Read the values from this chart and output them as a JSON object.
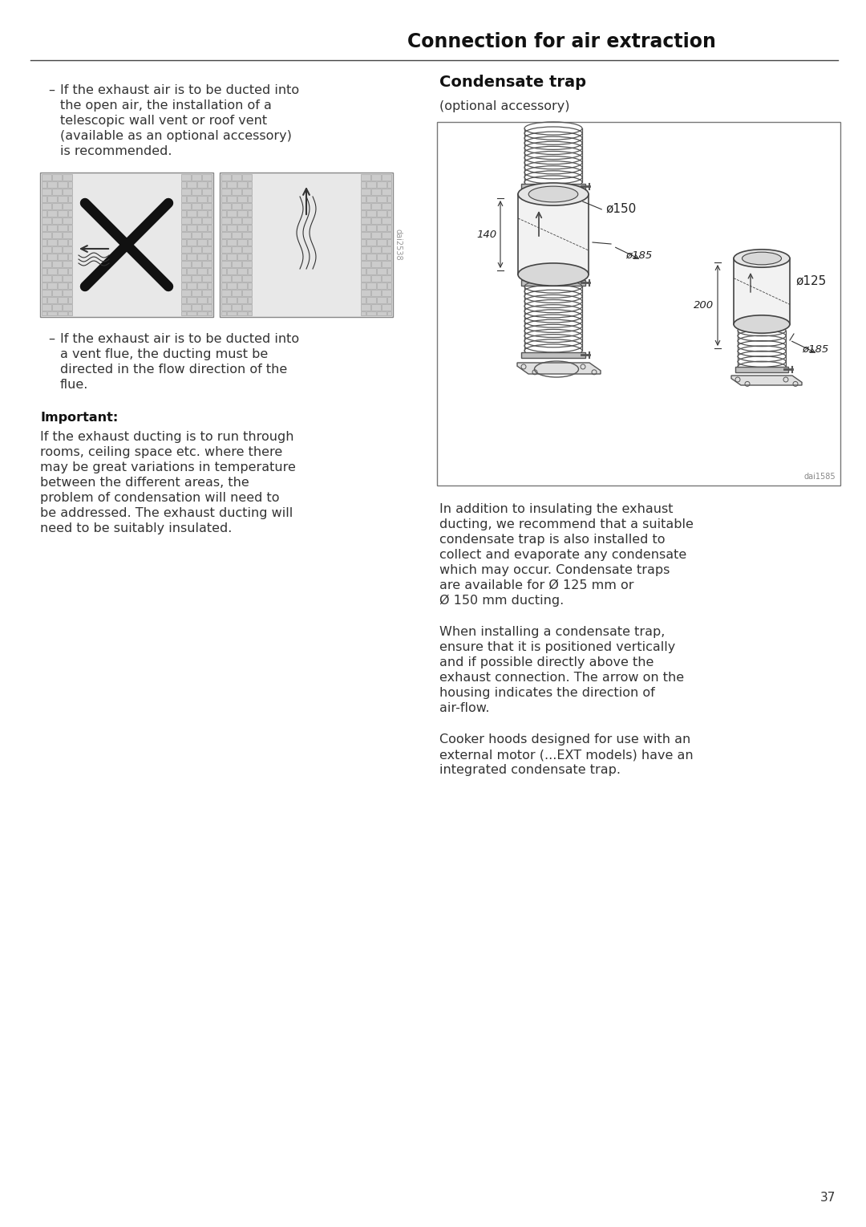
{
  "page_title": "Connection for air extraction",
  "left_col_text1_line1": "If the exhaust air is to be ducted into",
  "left_col_text1_line2": "the open air, the installation of a",
  "left_col_text1_line3": "telescopic wall vent or roof vent",
  "left_col_text1_line4": "(available as an optional accessory)",
  "left_col_text1_line5": "is recommended.",
  "left_col_text2_line1": "If the exhaust air is to be ducted into",
  "left_col_text2_line2": "a vent flue, the ducting must be",
  "left_col_text2_line3": "directed in the flow direction of the",
  "left_col_text2_line4": "flue.",
  "important_label": "Important:",
  "imp_line1": "If the exhaust ducting is to run through",
  "imp_line2": "rooms, ceiling space etc. where there",
  "imp_line3": "may be great variations in temperature",
  "imp_line4": "between the different areas, the",
  "imp_line5": "problem of condensation will need to",
  "imp_line6": "be addressed. The exhaust ducting will",
  "imp_line7": "need to be suitably insulated.",
  "right_col_title": "Condensate trap",
  "right_col_subtitle": "(optional accessory)",
  "r1_line1": "In addition to insulating the exhaust",
  "r1_line2": "ducting, we recommend that a suitable",
  "r1_line3": "condensate trap is also installed to",
  "r1_line4": "collect and evaporate any condensate",
  "r1_line5": "which may occur. Condensate traps",
  "r1_line6": "are available for Ø 125 mm or",
  "r1_line7": "Ø 150 mm ducting.",
  "r2_line1": "When installing a condensate trap,",
  "r2_line2": "ensure that it is positioned vertically",
  "r2_line3": "and if possible directly above the",
  "r2_line4": "exhaust connection. The arrow on the",
  "r2_line5": "housing indicates the direction of",
  "r2_line6": "air-flow.",
  "r3_line1": "Cooker hoods designed for use with an",
  "r3_line2": "external motor (...EXT models) have an",
  "r3_line3": "integrated condensate trap.",
  "page_number": "37",
  "bg_color": "#ffffff",
  "text_color": "#333333",
  "title_color": "#111111",
  "image_ref_left": "dai2538",
  "image_ref_right": "dai1585",
  "dim_150": "ø150",
  "dim_185a": "ø185",
  "dim_140": "140",
  "dim_125": "ø125",
  "dim_185b": "ø185",
  "dim_200": "200"
}
